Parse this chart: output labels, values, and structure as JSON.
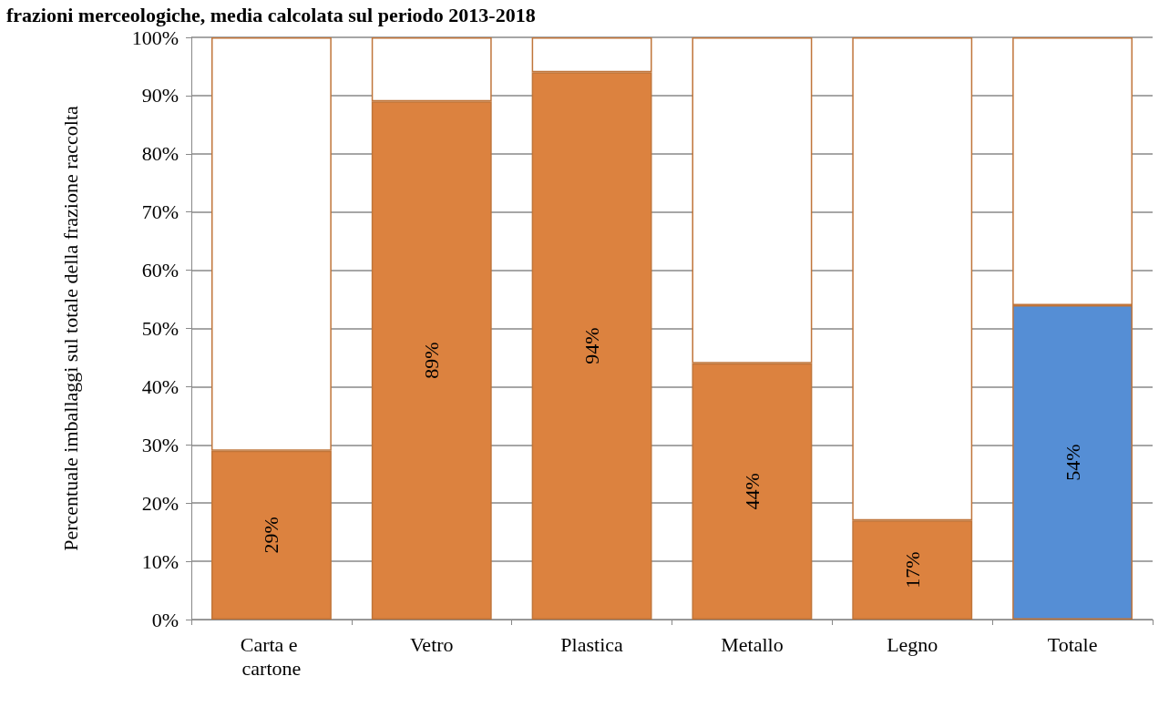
{
  "chart_data": {
    "type": "bar",
    "title": "frazioni merceologiche, media calcolata sul periodo 2013-2018",
    "ylabel": "Percentuale imballaggi sul totale della frazione raccolta",
    "categories": [
      "Carta e cartone",
      "Vetro",
      "Plastica",
      "Metallo",
      "Legno",
      "Totale"
    ],
    "stacked": true,
    "series": [
      {
        "colors": [
          "#dc823f",
          "#dc823f",
          "#dc823f",
          "#dc823f",
          "#dc823f",
          "#558ed5"
        ],
        "values": [
          29,
          89,
          94,
          44,
          17,
          54
        ],
        "value_labels": [
          "29%",
          "89%",
          "94%",
          "44%",
          "17%",
          "54%"
        ]
      },
      {
        "color": "#ffffff",
        "values": [
          71,
          11,
          6,
          56,
          83,
          46
        ]
      }
    ],
    "ylim": [
      0,
      100
    ],
    "yticks": [
      {
        "value": 0,
        "label": "0%"
      },
      {
        "value": 10,
        "label": "10%"
      },
      {
        "value": 20,
        "label": "20%"
      },
      {
        "value": 30,
        "label": "30%"
      },
      {
        "value": 40,
        "label": "40%"
      },
      {
        "value": 50,
        "label": "50%"
      },
      {
        "value": 60,
        "label": "60%"
      },
      {
        "value": 70,
        "label": "70%"
      },
      {
        "value": 80,
        "label": "80%"
      },
      {
        "value": 90,
        "label": "90%"
      },
      {
        "value": 100,
        "label": "100%"
      }
    ],
    "grid": "y"
  }
}
